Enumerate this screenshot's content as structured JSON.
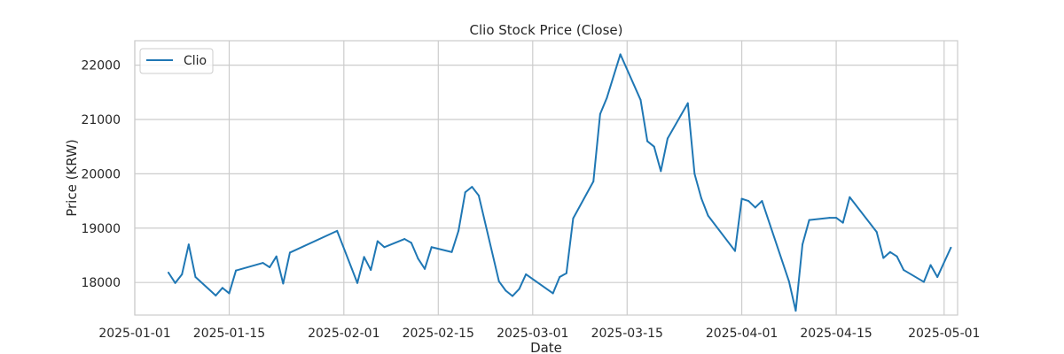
{
  "chart_data": {
    "type": "line",
    "title": "Clio Stock Price (Close)",
    "xlabel": "Date",
    "ylabel": "Price (KRW)",
    "xlim": [
      "2025-01-01",
      "2025-05-03"
    ],
    "ylim": [
      17400,
      22450
    ],
    "x_ticks": [
      "2025-01-01",
      "2025-01-15",
      "2025-02-01",
      "2025-02-15",
      "2025-03-01",
      "2025-03-15",
      "2025-04-01",
      "2025-04-15",
      "2025-05-01"
    ],
    "y_ticks": [
      18000,
      19000,
      20000,
      21000,
      22000
    ],
    "grid": true,
    "legend_position": "top-left",
    "colors": {
      "line": "#1f77b4",
      "grid": "#cccccc",
      "frame": "#cccccc",
      "background": "#ffffff",
      "text": "#262626"
    },
    "series": [
      {
        "name": "Clio",
        "x": [
          "2025-01-06",
          "2025-01-07",
          "2025-01-08",
          "2025-01-09",
          "2025-01-10",
          "2025-01-13",
          "2025-01-14",
          "2025-01-15",
          "2025-01-16",
          "2025-01-20",
          "2025-01-21",
          "2025-01-22",
          "2025-01-23",
          "2025-01-24",
          "2025-01-31",
          "2025-02-03",
          "2025-02-04",
          "2025-02-05",
          "2025-02-06",
          "2025-02-07",
          "2025-02-10",
          "2025-02-11",
          "2025-02-12",
          "2025-02-13",
          "2025-02-14",
          "2025-02-17",
          "2025-02-18",
          "2025-02-19",
          "2025-02-20",
          "2025-02-21",
          "2025-02-24",
          "2025-02-25",
          "2025-02-26",
          "2025-02-27",
          "2025-02-28",
          "2025-03-04",
          "2025-03-05",
          "2025-03-06",
          "2025-03-07",
          "2025-03-10",
          "2025-03-11",
          "2025-03-12",
          "2025-03-14",
          "2025-03-17",
          "2025-03-18",
          "2025-03-19",
          "2025-03-20",
          "2025-03-21",
          "2025-03-24",
          "2025-03-25",
          "2025-03-26",
          "2025-03-27",
          "2025-03-31",
          "2025-04-01",
          "2025-04-02",
          "2025-04-03",
          "2025-04-04",
          "2025-04-08",
          "2025-04-09",
          "2025-04-10",
          "2025-04-11",
          "2025-04-14",
          "2025-04-15",
          "2025-04-16",
          "2025-04-17",
          "2025-04-21",
          "2025-04-22",
          "2025-04-23",
          "2025-04-24",
          "2025-04-25",
          "2025-04-28",
          "2025-04-29",
          "2025-04-30",
          "2025-05-02"
        ],
        "values": [
          18180,
          17990,
          18150,
          18700,
          18100,
          17760,
          17900,
          17800,
          18220,
          18360,
          18280,
          18480,
          17980,
          18550,
          18950,
          17990,
          18470,
          18230,
          18760,
          18650,
          18800,
          18730,
          18440,
          18250,
          18650,
          18560,
          18950,
          19660,
          19760,
          19600,
          18020,
          17850,
          17750,
          17880,
          18150,
          17800,
          18100,
          18170,
          19180,
          19860,
          21100,
          21400,
          22200,
          21360,
          20600,
          20500,
          20050,
          20650,
          21300,
          20000,
          19550,
          19230,
          18580,
          19540,
          19500,
          19380,
          19500,
          18020,
          17480,
          18700,
          19150,
          19190,
          19190,
          19100,
          19570,
          18930,
          18450,
          18560,
          18480,
          18230,
          18010,
          18320,
          18100,
          18640
        ]
      }
    ]
  }
}
